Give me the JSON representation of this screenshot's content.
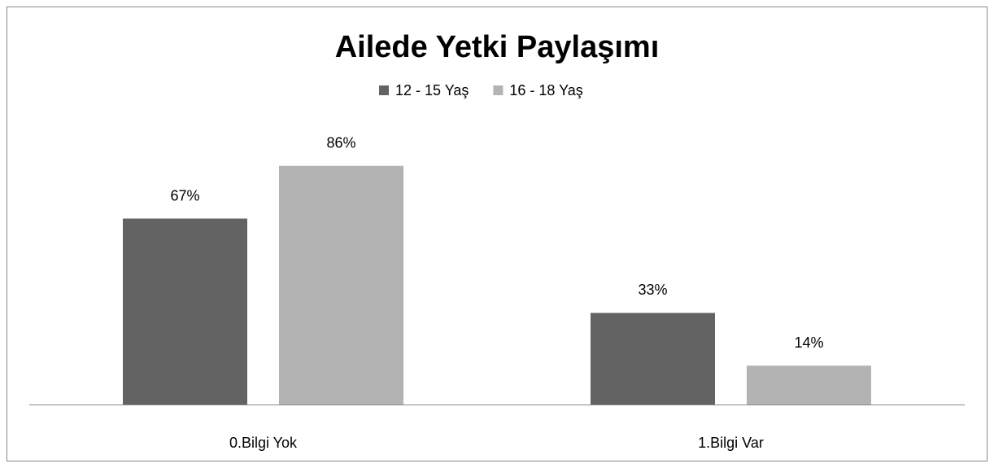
{
  "chart_data": {
    "type": "bar",
    "title": "Ailede Yetki Paylaşımı",
    "categories": [
      "0.Bilgi Yok",
      "1.Bilgi Var"
    ],
    "series": [
      {
        "name": "12 - 15 Yaş",
        "color": "#636363",
        "values": [
          67,
          33
        ],
        "value_labels": [
          "67%",
          "33%"
        ]
      },
      {
        "name": "16 - 18 Yaş",
        "color": "#b3b3b3",
        "values": [
          86,
          14
        ],
        "value_labels": [
          "86%",
          "14%"
        ]
      }
    ],
    "ylim": [
      0,
      100
    ]
  }
}
